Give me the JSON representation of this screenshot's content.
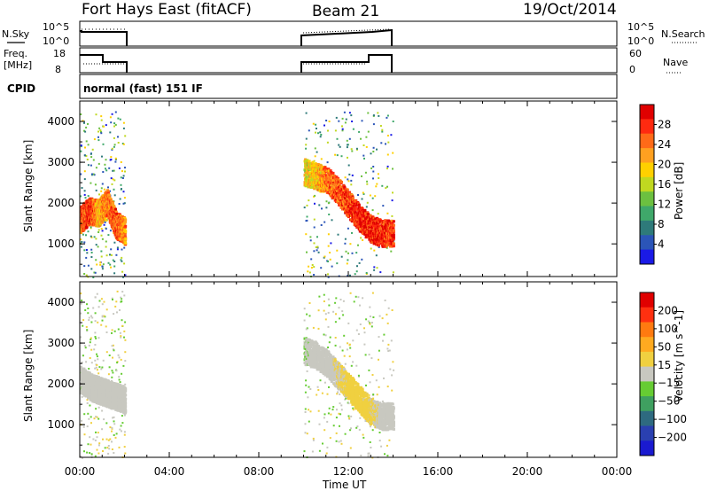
{
  "header": {
    "station": "Fort Hays East (fitACF)",
    "beam": "Beam 21",
    "date": "19/Oct/2014"
  },
  "top_panels": {
    "nsky_label": "N.Sky",
    "nsky_ticks": [
      "10^5",
      "10^0"
    ],
    "nsearch_label": "N.Search",
    "freq_label": "Freq.",
    "freq_unit": "[MHz]",
    "freq_ticks": [
      "18",
      "8"
    ],
    "nave_label": "Nave",
    "nave_ticks": [
      "60",
      "0"
    ],
    "cpid_label": "CPID",
    "cpid_text": "normal (fast) 151 IF"
  },
  "x_axis": {
    "label": "Time UT",
    "ticks": [
      "00:00",
      "04:00",
      "08:00",
      "12:00",
      "16:00",
      "20:00",
      "00:00"
    ],
    "range_hours": [
      0,
      24
    ]
  },
  "chart_data": [
    {
      "type": "heatmap",
      "title": "",
      "xlabel": "Time UT",
      "ylabel": "Slant Range [km]",
      "xlim_hours": [
        0,
        24
      ],
      "ylim_km": [
        200,
        4500
      ],
      "yticks": [
        1000,
        2000,
        3000,
        4000
      ],
      "colorbar": {
        "label": "Power [dB]",
        "ticks": [
          "28",
          "24",
          "20",
          "16",
          "12",
          "8",
          "4"
        ],
        "range": [
          0,
          32
        ],
        "colors": [
          "#1a1ae6",
          "#2b55b8",
          "#2e7a7a",
          "#3fa86a",
          "#6cc040",
          "#c0d820",
          "#ffd000",
          "#ffa020",
          "#ff6a18",
          "#ff2a10",
          "#e00000"
        ]
      },
      "observation_windows_hours": [
        [
          0.0,
          2.0
        ],
        [
          10.0,
          14.0
        ]
      ],
      "echo_bands": [
        {
          "name": "early-band",
          "t_hours": [
            0.0,
            0.4,
            0.8,
            1.2,
            1.6,
            2.0
          ],
          "range_km": [
            1500,
            1700,
            1650,
            1900,
            1350,
            1200
          ],
          "power_db": [
            25,
            28,
            20,
            24,
            26,
            22
          ]
        },
        {
          "name": "main-descending-band",
          "t_hours": [
            10.0,
            10.5,
            11.0,
            11.5,
            12.0,
            12.5,
            13.0,
            13.5,
            14.0
          ],
          "range_km": [
            2650,
            2550,
            2450,
            2200,
            1850,
            1500,
            1250,
            1150,
            1150
          ],
          "power_db": [
            18,
            20,
            24,
            26,
            27,
            28,
            29,
            28,
            27
          ]
        }
      ]
    },
    {
      "type": "heatmap",
      "title": "",
      "xlabel": "Time UT",
      "ylabel": "Slant Range [km]",
      "xlim_hours": [
        0,
        24
      ],
      "ylim_km": [
        200,
        4500
      ],
      "yticks": [
        1000,
        2000,
        3000,
        4000
      ],
      "colorbar": {
        "label": "Velocity [m s^-1]",
        "ticks": [
          "200",
          "100",
          "50",
          "15",
          "−15",
          "−50",
          "−100",
          "−200"
        ],
        "range": [
          -250,
          250
        ],
        "colors": [
          "#1a1ad0",
          "#2a40b0",
          "#2e6a80",
          "#3fa060",
          "#66cc33",
          "#c8c8c0",
          "#f0d040",
          "#ffaa20",
          "#ff7a10",
          "#ff3010",
          "#e00000"
        ]
      },
      "observation_windows_hours": [
        [
          0.0,
          2.0
        ],
        [
          10.0,
          14.0
        ]
      ],
      "echo_bands": [
        {
          "name": "early-band",
          "t_hours": [
            0.0,
            0.5,
            1.0,
            1.5,
            2.0
          ],
          "range_km": [
            2000,
            1800,
            1700,
            1600,
            1500
          ],
          "velocity_ms": [
            -10,
            0,
            5,
            -5,
            0
          ]
        },
        {
          "name": "main-descending-band",
          "t_hours": [
            10.0,
            10.5,
            11.0,
            11.5,
            12.0,
            12.5,
            13.0,
            13.5,
            14.0
          ],
          "range_km": [
            2700,
            2600,
            2400,
            2100,
            1800,
            1500,
            1200,
            1100,
            1100
          ],
          "velocity_ms": [
            -20,
            0,
            0,
            20,
            40,
            40,
            30,
            0,
            0
          ]
        }
      ]
    }
  ]
}
